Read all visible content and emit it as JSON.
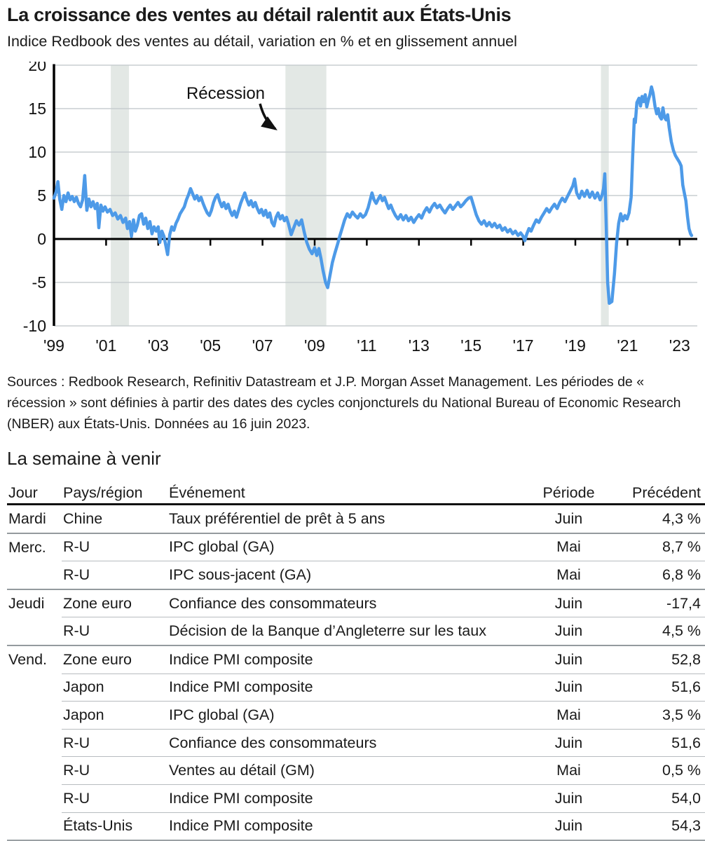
{
  "chart_data": {
    "type": "line",
    "title": "La croissance des ventes au détail ralentit aux États-Unis",
    "subtitle": "Indice Redbook des ventes au détail, variation en % et en glissement annuel",
    "xlabel": "",
    "ylabel": "",
    "ylim": [
      -10,
      20
    ],
    "y_ticks": [
      20,
      15,
      10,
      5,
      0,
      -5,
      -10
    ],
    "x_tick_years": [
      1999,
      2001,
      2003,
      2005,
      2007,
      2009,
      2011,
      2013,
      2015,
      2017,
      2019,
      2021,
      2023
    ],
    "x_tick_labels": [
      "'99",
      "'01",
      "'03",
      "'05",
      "'07",
      "'09",
      "'11",
      "'13",
      "'15",
      "'17",
      "'19",
      "'21",
      "'23"
    ],
    "grid": true,
    "line_color": "#4d9ae8",
    "recession_band_color": "#e3e8e5",
    "recession_bands": [
      [
        2001.18,
        2001.88
      ],
      [
        2007.88,
        2009.45
      ],
      [
        2019.98,
        2020.28
      ]
    ],
    "annotation": {
      "label": "Récession"
    },
    "series_name": "Indice Redbook des ventes au détail (% GA)",
    "points": [
      [
        1999.0,
        4.7
      ],
      [
        1999.08,
        5.4
      ],
      [
        1999.15,
        6.6
      ],
      [
        1999.22,
        4.6
      ],
      [
        1999.3,
        3.4
      ],
      [
        1999.38,
        5.0
      ],
      [
        1999.46,
        4.3
      ],
      [
        1999.54,
        5.3
      ],
      [
        1999.62,
        4.5
      ],
      [
        1999.7,
        4.9
      ],
      [
        1999.78,
        4.3
      ],
      [
        1999.86,
        4.8
      ],
      [
        1999.94,
        4.1
      ],
      [
        2000.02,
        3.7
      ],
      [
        2000.1,
        4.5
      ],
      [
        2000.18,
        7.3
      ],
      [
        2000.26,
        3.3
      ],
      [
        2000.34,
        4.6
      ],
      [
        2000.42,
        3.7
      ],
      [
        2000.5,
        4.3
      ],
      [
        2000.58,
        3.5
      ],
      [
        2000.66,
        4.1
      ],
      [
        2000.72,
        1.3
      ],
      [
        2000.8,
        3.9
      ],
      [
        2000.88,
        3.2
      ],
      [
        2000.96,
        3.7
      ],
      [
        2001.05,
        3.1
      ],
      [
        2001.15,
        3.4
      ],
      [
        2001.25,
        2.7
      ],
      [
        2001.35,
        3.0
      ],
      [
        2001.45,
        2.3
      ],
      [
        2001.55,
        2.7
      ],
      [
        2001.65,
        1.9
      ],
      [
        2001.75,
        2.4
      ],
      [
        2001.82,
        1.2
      ],
      [
        2001.9,
        2.0
      ],
      [
        2001.97,
        0.3
      ],
      [
        2002.05,
        2.2
      ],
      [
        2002.12,
        0.9
      ],
      [
        2002.2,
        1.6
      ],
      [
        2002.28,
        2.7
      ],
      [
        2002.36,
        2.9
      ],
      [
        2002.44,
        1.7
      ],
      [
        2002.52,
        2.4
      ],
      [
        2002.6,
        1.2
      ],
      [
        2002.68,
        2.0
      ],
      [
        2002.76,
        0.6
      ],
      [
        2002.84,
        1.4
      ],
      [
        2002.92,
        0.9
      ],
      [
        2003.0,
        1.4
      ],
      [
        2003.06,
        -0.4
      ],
      [
        2003.14,
        0.9
      ],
      [
        2003.22,
        0.3
      ],
      [
        2003.3,
        -0.9
      ],
      [
        2003.36,
        -1.8
      ],
      [
        2003.44,
        0.5
      ],
      [
        2003.52,
        1.4
      ],
      [
        2003.6,
        1.0
      ],
      [
        2003.68,
        1.8
      ],
      [
        2003.76,
        2.3
      ],
      [
        2003.84,
        2.9
      ],
      [
        2003.92,
        3.3
      ],
      [
        2004.0,
        3.7
      ],
      [
        2004.08,
        4.5
      ],
      [
        2004.16,
        5.1
      ],
      [
        2004.24,
        5.8
      ],
      [
        2004.32,
        5.2
      ],
      [
        2004.4,
        4.6
      ],
      [
        2004.48,
        5.0
      ],
      [
        2004.56,
        4.4
      ],
      [
        2004.64,
        4.8
      ],
      [
        2004.72,
        4.1
      ],
      [
        2004.8,
        3.5
      ],
      [
        2004.88,
        3.0
      ],
      [
        2004.96,
        2.7
      ],
      [
        2005.04,
        3.3
      ],
      [
        2005.12,
        4.2
      ],
      [
        2005.2,
        4.8
      ],
      [
        2005.28,
        5.1
      ],
      [
        2005.36,
        4.3
      ],
      [
        2005.44,
        3.7
      ],
      [
        2005.52,
        4.2
      ],
      [
        2005.6,
        3.5
      ],
      [
        2005.68,
        4.0
      ],
      [
        2005.76,
        3.2
      ],
      [
        2005.84,
        2.7
      ],
      [
        2005.92,
        3.2
      ],
      [
        2006.0,
        2.5
      ],
      [
        2006.08,
        3.3
      ],
      [
        2006.16,
        4.1
      ],
      [
        2006.24,
        4.7
      ],
      [
        2006.32,
        5.3
      ],
      [
        2006.4,
        4.5
      ],
      [
        2006.48,
        3.9
      ],
      [
        2006.56,
        4.4
      ],
      [
        2006.64,
        3.7
      ],
      [
        2006.72,
        4.2
      ],
      [
        2006.8,
        3.5
      ],
      [
        2006.88,
        3.0
      ],
      [
        2006.96,
        3.4
      ],
      [
        2007.04,
        2.7
      ],
      [
        2007.12,
        3.3
      ],
      [
        2007.2,
        2.5
      ],
      [
        2007.28,
        3.0
      ],
      [
        2007.36,
        1.9
      ],
      [
        2007.44,
        1.5
      ],
      [
        2007.52,
        2.5
      ],
      [
        2007.6,
        3.0
      ],
      [
        2007.68,
        2.3
      ],
      [
        2007.76,
        2.7
      ],
      [
        2007.84,
        2.1
      ],
      [
        2007.92,
        2.5
      ],
      [
        2008.0,
        1.7
      ],
      [
        2008.1,
        0.5
      ],
      [
        2008.2,
        1.3
      ],
      [
        2008.3,
        2.1
      ],
      [
        2008.4,
        1.6
      ],
      [
        2008.5,
        2.2
      ],
      [
        2008.6,
        0.8
      ],
      [
        2008.7,
        -0.4
      ],
      [
        2008.8,
        -1.2
      ],
      [
        2008.9,
        -1.7
      ],
      [
        2009.0,
        -1.0
      ],
      [
        2009.08,
        -1.9
      ],
      [
        2009.16,
        -1.1
      ],
      [
        2009.24,
        -2.2
      ],
      [
        2009.32,
        -3.6
      ],
      [
        2009.42,
        -5.0
      ],
      [
        2009.5,
        -5.6
      ],
      [
        2009.58,
        -4.3
      ],
      [
        2009.68,
        -2.7
      ],
      [
        2009.78,
        -1.6
      ],
      [
        2009.88,
        -0.6
      ],
      [
        2009.96,
        0.3
      ],
      [
        2010.05,
        1.2
      ],
      [
        2010.15,
        2.2
      ],
      [
        2010.25,
        2.9
      ],
      [
        2010.35,
        2.5
      ],
      [
        2010.45,
        3.1
      ],
      [
        2010.55,
        2.7
      ],
      [
        2010.65,
        2.4
      ],
      [
        2010.75,
        2.9
      ],
      [
        2010.85,
        2.5
      ],
      [
        2010.95,
        2.8
      ],
      [
        2011.05,
        3.6
      ],
      [
        2011.12,
        4.4
      ],
      [
        2011.2,
        5.3
      ],
      [
        2011.28,
        4.5
      ],
      [
        2011.36,
        4.1
      ],
      [
        2011.44,
        4.6
      ],
      [
        2011.52,
        5.0
      ],
      [
        2011.6,
        4.4
      ],
      [
        2011.68,
        4.8
      ],
      [
        2011.76,
        4.1
      ],
      [
        2011.84,
        3.5
      ],
      [
        2011.92,
        3.9
      ],
      [
        2012.0,
        3.3
      ],
      [
        2012.1,
        2.7
      ],
      [
        2012.2,
        2.3
      ],
      [
        2012.3,
        2.8
      ],
      [
        2012.4,
        2.2
      ],
      [
        2012.5,
        2.7
      ],
      [
        2012.6,
        2.1
      ],
      [
        2012.7,
        2.5
      ],
      [
        2012.8,
        1.9
      ],
      [
        2012.9,
        2.4
      ],
      [
        2013.0,
        2.8
      ],
      [
        2013.1,
        2.4
      ],
      [
        2013.2,
        3.1
      ],
      [
        2013.3,
        3.6
      ],
      [
        2013.4,
        3.1
      ],
      [
        2013.5,
        3.7
      ],
      [
        2013.6,
        4.1
      ],
      [
        2013.7,
        3.6
      ],
      [
        2013.8,
        3.9
      ],
      [
        2013.9,
        3.4
      ],
      [
        2014.0,
        3.0
      ],
      [
        2014.1,
        3.5
      ],
      [
        2014.2,
        3.9
      ],
      [
        2014.3,
        3.4
      ],
      [
        2014.4,
        3.8
      ],
      [
        2014.5,
        4.2
      ],
      [
        2014.6,
        3.7
      ],
      [
        2014.7,
        4.0
      ],
      [
        2014.8,
        4.4
      ],
      [
        2014.9,
        4.7
      ],
      [
        2015.0,
        4.8
      ],
      [
        2015.1,
        3.8
      ],
      [
        2015.2,
        2.8
      ],
      [
        2015.3,
        2.1
      ],
      [
        2015.4,
        1.7
      ],
      [
        2015.5,
        2.1
      ],
      [
        2015.6,
        1.5
      ],
      [
        2015.7,
        1.9
      ],
      [
        2015.8,
        1.4
      ],
      [
        2015.9,
        1.8
      ],
      [
        2016.0,
        1.3
      ],
      [
        2016.1,
        1.6
      ],
      [
        2016.2,
        1.0
      ],
      [
        2016.3,
        1.3
      ],
      [
        2016.4,
        0.8
      ],
      [
        2016.5,
        1.1
      ],
      [
        2016.6,
        0.6
      ],
      [
        2016.7,
        0.9
      ],
      [
        2016.8,
        0.4
      ],
      [
        2016.9,
        0.7
      ],
      [
        2017.0,
        0.3
      ],
      [
        2017.06,
        -0.2
      ],
      [
        2017.14,
        0.6
      ],
      [
        2017.22,
        1.2
      ],
      [
        2017.3,
        0.9
      ],
      [
        2017.4,
        1.6
      ],
      [
        2017.5,
        2.2
      ],
      [
        2017.6,
        1.9
      ],
      [
        2017.7,
        2.5
      ],
      [
        2017.8,
        3.0
      ],
      [
        2017.9,
        3.5
      ],
      [
        2018.0,
        3.1
      ],
      [
        2018.1,
        3.6
      ],
      [
        2018.2,
        4.0
      ],
      [
        2018.3,
        3.5
      ],
      [
        2018.4,
        4.2
      ],
      [
        2018.5,
        4.7
      ],
      [
        2018.6,
        4.3
      ],
      [
        2018.7,
        4.9
      ],
      [
        2018.8,
        5.5
      ],
      [
        2018.9,
        6.1
      ],
      [
        2018.97,
        6.9
      ],
      [
        2019.05,
        5.3
      ],
      [
        2019.15,
        4.7
      ],
      [
        2019.25,
        5.5
      ],
      [
        2019.35,
        4.9
      ],
      [
        2019.45,
        5.6
      ],
      [
        2019.55,
        4.8
      ],
      [
        2019.65,
        5.4
      ],
      [
        2019.75,
        4.7
      ],
      [
        2019.85,
        5.3
      ],
      [
        2019.95,
        4.5
      ],
      [
        2020.02,
        5.0
      ],
      [
        2020.08,
        5.8
      ],
      [
        2020.13,
        7.5
      ],
      [
        2020.18,
        2.0
      ],
      [
        2020.24,
        -5.0
      ],
      [
        2020.3,
        -7.4
      ],
      [
        2020.4,
        -7.2
      ],
      [
        2020.5,
        -4.0
      ],
      [
        2020.58,
        -0.5
      ],
      [
        2020.66,
        1.8
      ],
      [
        2020.74,
        2.9
      ],
      [
        2020.82,
        2.1
      ],
      [
        2020.9,
        2.7
      ],
      [
        2020.98,
        2.3
      ],
      [
        2021.06,
        3.0
      ],
      [
        2021.14,
        4.8
      ],
      [
        2021.2,
        9.5
      ],
      [
        2021.26,
        13.8
      ],
      [
        2021.3,
        13.4
      ],
      [
        2021.36,
        15.7
      ],
      [
        2021.44,
        16.2
      ],
      [
        2021.5,
        15.3
      ],
      [
        2021.56,
        16.4
      ],
      [
        2021.62,
        15.8
      ],
      [
        2021.68,
        16.6
      ],
      [
        2021.74,
        15.2
      ],
      [
        2021.8,
        16.0
      ],
      [
        2021.86,
        16.6
      ],
      [
        2021.92,
        17.5
      ],
      [
        2021.98,
        16.8
      ],
      [
        2022.06,
        15.2
      ],
      [
        2022.12,
        14.4
      ],
      [
        2022.18,
        15.0
      ],
      [
        2022.24,
        14.1
      ],
      [
        2022.3,
        13.8
      ],
      [
        2022.36,
        15.1
      ],
      [
        2022.42,
        14.0
      ],
      [
        2022.48,
        13.7
      ],
      [
        2022.54,
        14.3
      ],
      [
        2022.6,
        12.8
      ],
      [
        2022.68,
        11.2
      ],
      [
        2022.76,
        10.2
      ],
      [
        2022.84,
        9.6
      ],
      [
        2022.92,
        9.2
      ],
      [
        2023.0,
        8.8
      ],
      [
        2023.06,
        8.4
      ],
      [
        2023.12,
        6.2
      ],
      [
        2023.18,
        5.3
      ],
      [
        2023.24,
        4.4
      ],
      [
        2023.3,
        2.6
      ],
      [
        2023.36,
        1.2
      ],
      [
        2023.42,
        0.6
      ],
      [
        2023.46,
        0.4
      ]
    ]
  },
  "source_note": "Sources : Redbook Research, Refinitiv Datastream et J.P. Morgan Asset Management. Les périodes de « récession » sont définies à partir des dates des cycles conjoncturels du National Bureau of Economic Research (NBER) aux États-Unis. Données au 16 juin 2023.",
  "week_ahead": {
    "title": "La semaine à venir",
    "columns": [
      "Jour",
      "Pays/région",
      "Événement",
      "Période",
      "Précédent"
    ],
    "rows": [
      {
        "jour": "Mardi",
        "pays": "Chine",
        "evenement": "Taux préférentiel de prêt à 5 ans",
        "periode": "Juin",
        "precedent": "4,3 %"
      },
      {
        "jour": "Merc.",
        "pays": "R-U",
        "evenement": "IPC global (GA)",
        "periode": "Mai",
        "precedent": "8,7 %"
      },
      {
        "jour": "",
        "pays": "R-U",
        "evenement": "IPC sous-jacent (GA)",
        "periode": "Mai",
        "precedent": "6,8 %"
      },
      {
        "jour": "Jeudi",
        "pays": "Zone euro",
        "evenement": "Confiance des consommateurs",
        "periode": "Juin",
        "precedent": "-17,4"
      },
      {
        "jour": "",
        "pays": "R-U",
        "evenement": "Décision de la Banque d’Angleterre sur les taux",
        "periode": "Juin",
        "precedent": "4,5 %"
      },
      {
        "jour": "Vend.",
        "pays": "Zone euro",
        "evenement": "Indice PMI composite",
        "periode": "Juin",
        "precedent": "52,8"
      },
      {
        "jour": "",
        "pays": "Japon",
        "evenement": "Indice PMI composite",
        "periode": "Juin",
        "precedent": "51,6"
      },
      {
        "jour": "",
        "pays": "Japon",
        "evenement": "IPC global (GA)",
        "periode": "Mai",
        "precedent": "3,5 %"
      },
      {
        "jour": "",
        "pays": "R-U",
        "evenement": "Confiance des consommateurs",
        "periode": "Juin",
        "precedent": "51,6"
      },
      {
        "jour": "",
        "pays": "R-U",
        "evenement": "Ventes au détail (GM)",
        "periode": "Mai",
        "precedent": "0,5 %"
      },
      {
        "jour": "",
        "pays": "R-U",
        "evenement": "Indice PMI composite",
        "periode": "Juin",
        "precedent": "54,0"
      },
      {
        "jour": "",
        "pays": "États-Unis",
        "evenement": "Indice PMI composite",
        "periode": "Juin",
        "precedent": "54,3"
      }
    ]
  }
}
